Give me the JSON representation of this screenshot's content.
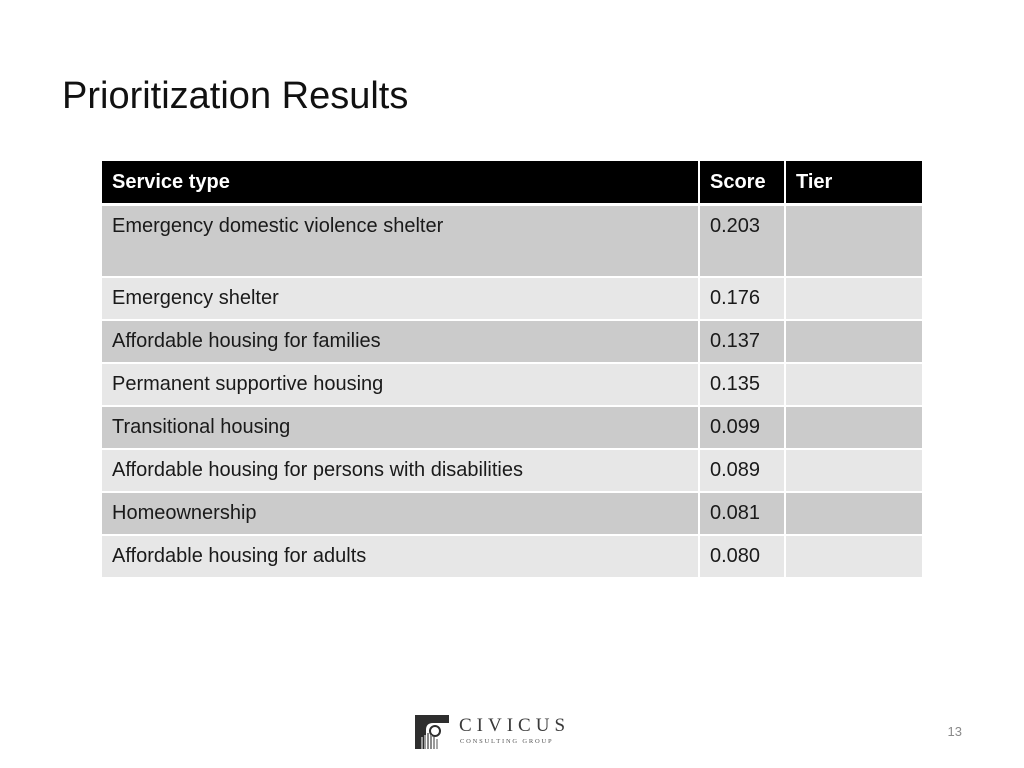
{
  "slide": {
    "title": "Prioritization Results",
    "page_number": "13"
  },
  "table": {
    "headers": {
      "service_type": "Service type",
      "score": "Score",
      "tier": "Tier"
    },
    "rows": [
      {
        "service_type": "Emergency domestic violence shelter",
        "score": "0.203",
        "tier": ""
      },
      {
        "service_type": "Emergency shelter",
        "score": "0.176",
        "tier": ""
      },
      {
        "service_type": "Affordable housing for families",
        "score": "0.137",
        "tier": ""
      },
      {
        "service_type": "Permanent supportive housing",
        "score": "0.135",
        "tier": ""
      },
      {
        "service_type": "Transitional housing",
        "score": "0.099",
        "tier": ""
      },
      {
        "service_type": "Affordable housing for persons with disabilities",
        "score": "0.089",
        "tier": ""
      },
      {
        "service_type": "Homeownership",
        "score": "0.081",
        "tier": ""
      },
      {
        "service_type": "Affordable housing for adults",
        "score": "0.080",
        "tier": ""
      }
    ]
  },
  "logo": {
    "wordmark": "CIVICUS",
    "tagline": "CONSULTING GROUP",
    "icon": "civicus-column-logo-icon"
  },
  "colors": {
    "header_background": "#000000",
    "header_text": "#ffffff",
    "row_dark": "#cbcbcb",
    "row_light": "#e7e7e7",
    "page_number": "#8a8a8a"
  }
}
